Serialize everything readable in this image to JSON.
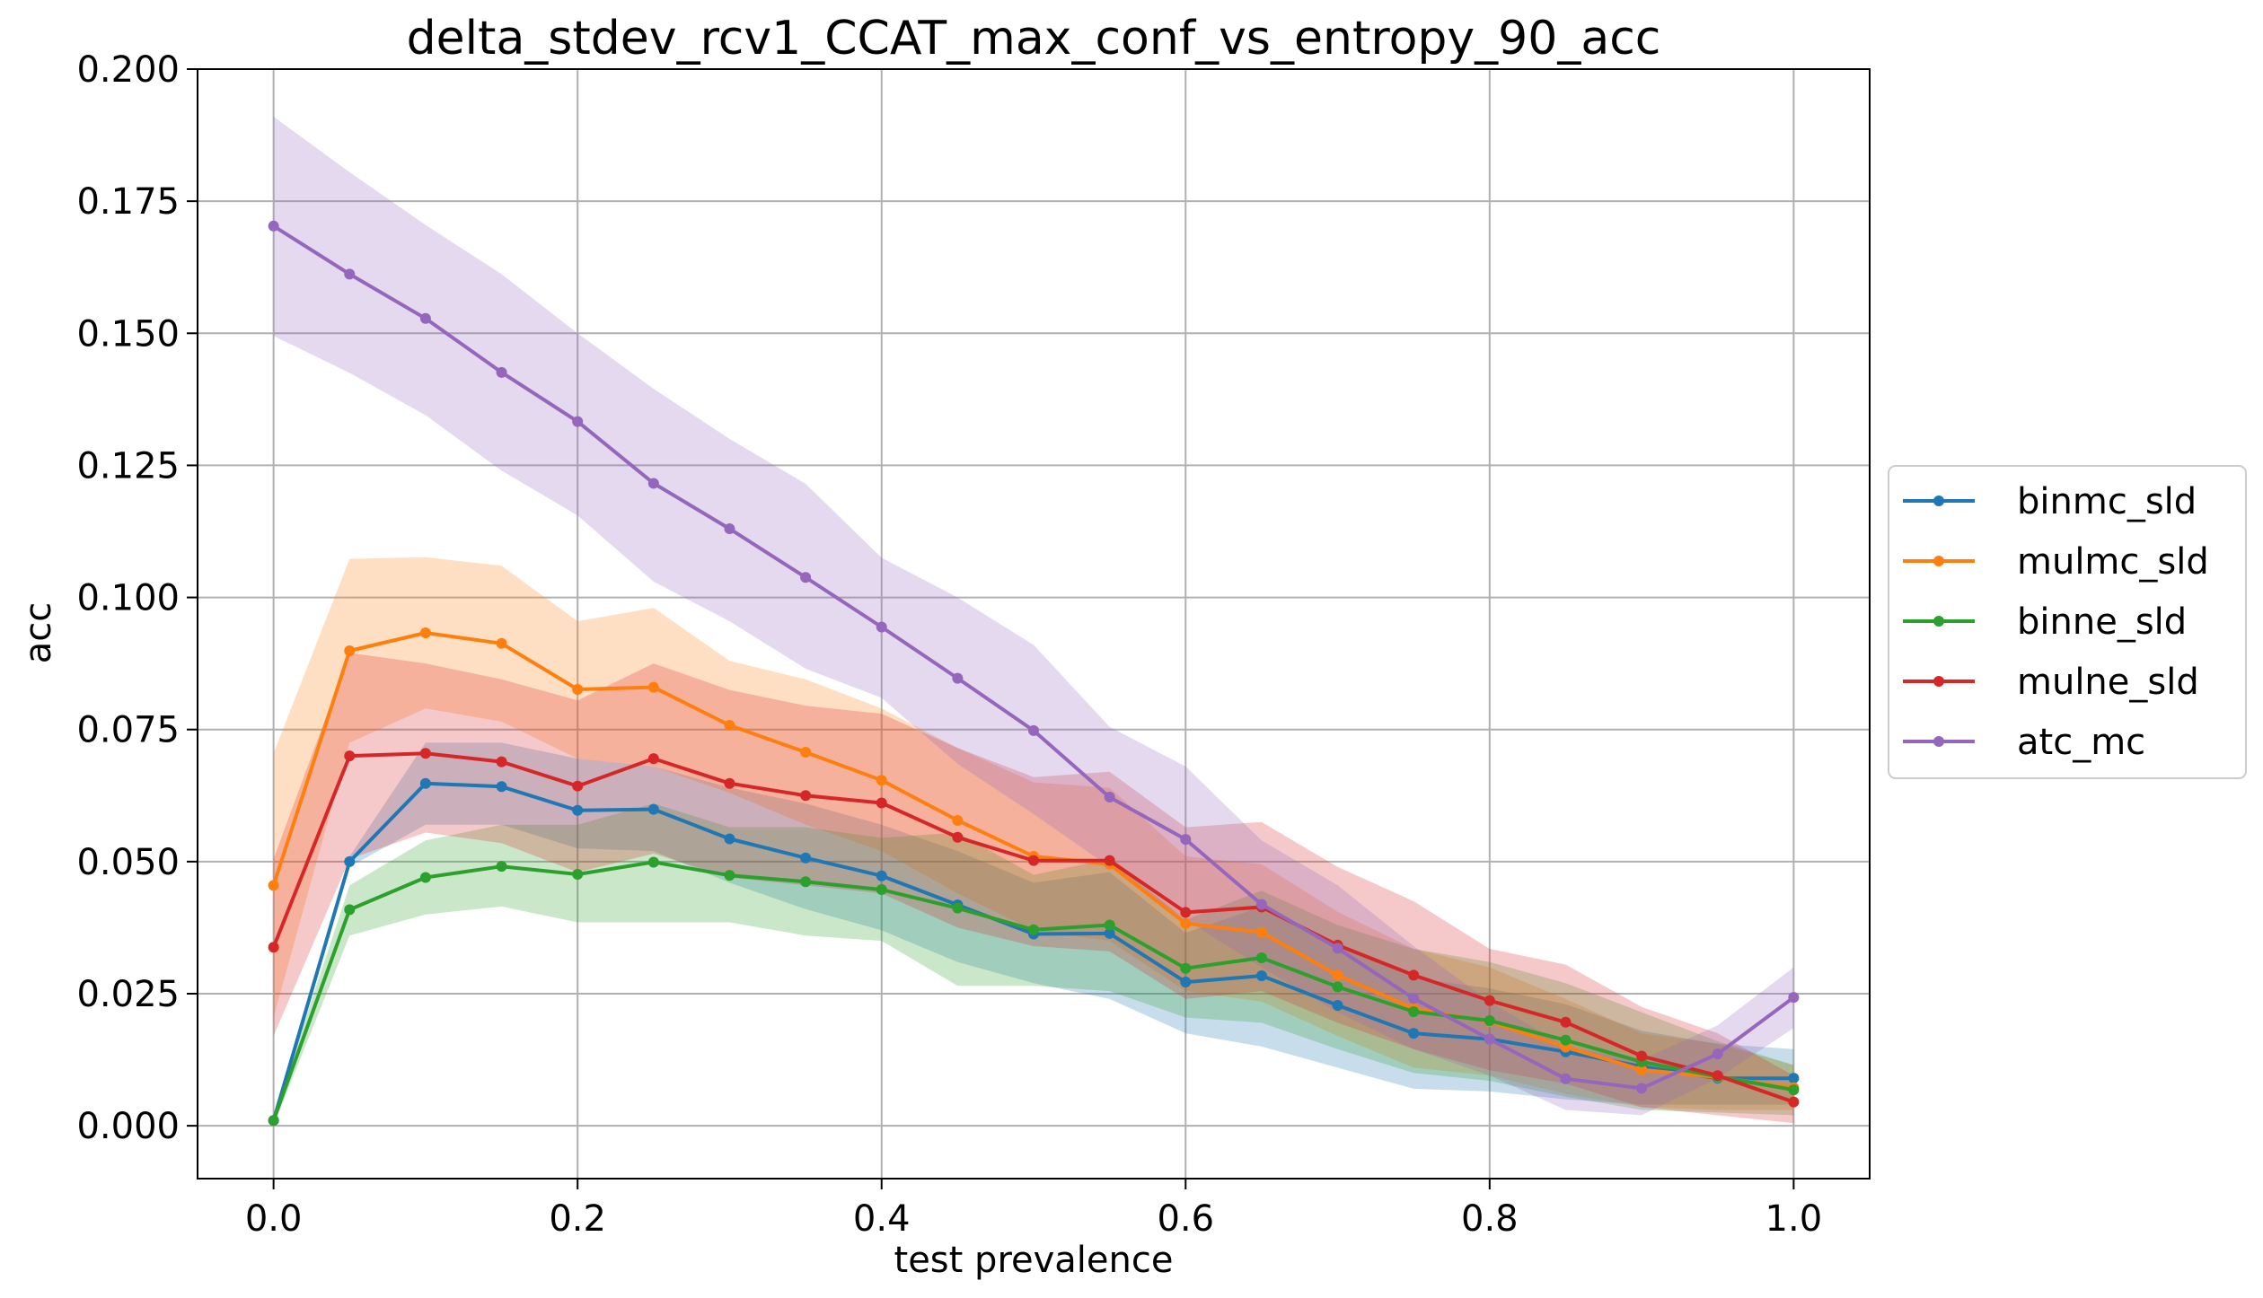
{
  "chart_data": {
    "type": "line",
    "title": "delta_stdev_rcv1_CCAT_max_conf_vs_entropy_90_acc",
    "xlabel": "test prevalence",
    "ylabel": "acc",
    "xlim": [
      -0.05,
      1.05
    ],
    "ylim": [
      -0.01,
      0.2
    ],
    "xticks": [
      0.0,
      0.2,
      0.4,
      0.6,
      0.8,
      1.0
    ],
    "xtick_labels": [
      "0.0",
      "0.2",
      "0.4",
      "0.6",
      "0.8",
      "1.0"
    ],
    "yticks": [
      0.0,
      0.025,
      0.05,
      0.075,
      0.1,
      0.125,
      0.15,
      0.175,
      0.2
    ],
    "ytick_labels": [
      "0.000",
      "0.025",
      "0.050",
      "0.075",
      "0.100",
      "0.125",
      "0.150",
      "0.175",
      "0.200"
    ],
    "grid": true,
    "legend_position": "right-outside",
    "x": [
      0.0,
      0.05,
      0.1,
      0.15,
      0.2,
      0.25,
      0.3,
      0.35,
      0.4,
      0.45,
      0.5,
      0.55,
      0.6,
      0.65,
      0.7,
      0.75,
      0.8,
      0.85,
      0.9,
      0.95,
      1.0
    ],
    "series": [
      {
        "name": "binmc_sld",
        "color": "#1f77b4",
        "values": [
          0.001,
          0.05,
          0.0648,
          0.0642,
          0.0597,
          0.0599,
          0.0543,
          0.0507,
          0.0473,
          0.0418,
          0.0363,
          0.0364,
          0.0272,
          0.0284,
          0.0228,
          0.0175,
          0.0164,
          0.014,
          0.0112,
          0.009,
          0.009
        ],
        "lower": [
          0.0,
          0.049,
          0.057,
          0.057,
          0.0525,
          0.052,
          0.046,
          0.041,
          0.037,
          0.031,
          0.027,
          0.024,
          0.0175,
          0.015,
          0.011,
          0.007,
          0.0065,
          0.005,
          0.004,
          0.004,
          0.004
        ],
        "upper": [
          0.002,
          0.051,
          0.0725,
          0.0725,
          0.0695,
          0.068,
          0.064,
          0.061,
          0.057,
          0.052,
          0.046,
          0.048,
          0.0365,
          0.0415,
          0.0345,
          0.028,
          0.026,
          0.023,
          0.018,
          0.0155,
          0.0145
        ]
      },
      {
        "name": "mulmc_sld",
        "color": "#ff7f0e",
        "values": [
          0.0455,
          0.0899,
          0.0933,
          0.0913,
          0.0826,
          0.083,
          0.0758,
          0.0707,
          0.0654,
          0.0578,
          0.051,
          0.0495,
          0.0383,
          0.0366,
          0.0285,
          0.0222,
          0.0197,
          0.0149,
          0.0106,
          0.0092,
          0.0072
        ],
        "lower": [
          0.0205,
          0.0725,
          0.079,
          0.0765,
          0.0695,
          0.068,
          0.063,
          0.057,
          0.052,
          0.044,
          0.037,
          0.035,
          0.0255,
          0.0235,
          0.017,
          0.011,
          0.0095,
          0.006,
          0.0035,
          0.003,
          0.003
        ],
        "upper": [
          0.0705,
          0.1073,
          0.1076,
          0.106,
          0.0955,
          0.098,
          0.088,
          0.0845,
          0.079,
          0.0715,
          0.065,
          0.064,
          0.051,
          0.0495,
          0.0405,
          0.0335,
          0.03,
          0.024,
          0.0175,
          0.0155,
          0.0115
        ]
      },
      {
        "name": "binne_sld",
        "color": "#2ca02c",
        "values": [
          0.001,
          0.0409,
          0.047,
          0.0491,
          0.0476,
          0.0499,
          0.0474,
          0.0462,
          0.0447,
          0.0412,
          0.0371,
          0.038,
          0.0298,
          0.0318,
          0.0263,
          0.0216,
          0.0199,
          0.0162,
          0.0121,
          0.0093,
          0.0068
        ],
        "lower": [
          0.0,
          0.036,
          0.04,
          0.0415,
          0.0385,
          0.0385,
          0.0385,
          0.036,
          0.035,
          0.0265,
          0.0265,
          0.0255,
          0.0205,
          0.0195,
          0.0145,
          0.01,
          0.0085,
          0.0055,
          0.003,
          0.0025,
          0.002
        ],
        "upper": [
          0.002,
          0.0455,
          0.054,
          0.057,
          0.057,
          0.061,
          0.0565,
          0.0565,
          0.0545,
          0.0555,
          0.0475,
          0.0505,
          0.039,
          0.0445,
          0.038,
          0.0335,
          0.031,
          0.027,
          0.0215,
          0.016,
          0.0115
        ]
      },
      {
        "name": "mulne_sld",
        "color": "#d62728",
        "values": [
          0.0338,
          0.07,
          0.0705,
          0.0689,
          0.0643,
          0.0695,
          0.0648,
          0.0625,
          0.0611,
          0.0546,
          0.0502,
          0.0502,
          0.0404,
          0.0414,
          0.0342,
          0.0285,
          0.0237,
          0.0196,
          0.0132,
          0.0095,
          0.0045
        ],
        "lower": [
          0.017,
          0.0505,
          0.0555,
          0.0535,
          0.048,
          0.0515,
          0.047,
          0.0455,
          0.044,
          0.0375,
          0.034,
          0.033,
          0.024,
          0.0255,
          0.0195,
          0.0145,
          0.0105,
          0.008,
          0.0035,
          0.002,
          0.0005
        ],
        "upper": [
          0.0505,
          0.0895,
          0.0875,
          0.0845,
          0.0805,
          0.0875,
          0.0825,
          0.0795,
          0.078,
          0.0715,
          0.066,
          0.067,
          0.0565,
          0.0575,
          0.049,
          0.0425,
          0.0335,
          0.0305,
          0.0225,
          0.0175,
          0.0095
        ]
      },
      {
        "name": "atc_mc",
        "color": "#9467bd",
        "values": [
          0.1703,
          0.1612,
          0.1528,
          0.1426,
          0.1333,
          0.1216,
          0.113,
          0.1038,
          0.0944,
          0.0847,
          0.0748,
          0.0622,
          0.0542,
          0.0419,
          0.0336,
          0.0241,
          0.0164,
          0.0089,
          0.0071,
          0.0136,
          0.0243
        ],
        "lower": [
          0.1495,
          0.1425,
          0.1345,
          0.124,
          0.1155,
          0.103,
          0.0955,
          0.0865,
          0.081,
          0.0685,
          0.059,
          0.049,
          0.039,
          0.03,
          0.0215,
          0.0145,
          0.0095,
          0.003,
          0.002,
          0.009,
          0.0185
        ],
        "upper": [
          0.191,
          0.1805,
          0.1705,
          0.1612,
          0.15,
          0.1395,
          0.13,
          0.1215,
          0.1075,
          0.1,
          0.091,
          0.0755,
          0.068,
          0.054,
          0.0455,
          0.034,
          0.0235,
          0.015,
          0.0125,
          0.019,
          0.03
        ]
      }
    ]
  }
}
